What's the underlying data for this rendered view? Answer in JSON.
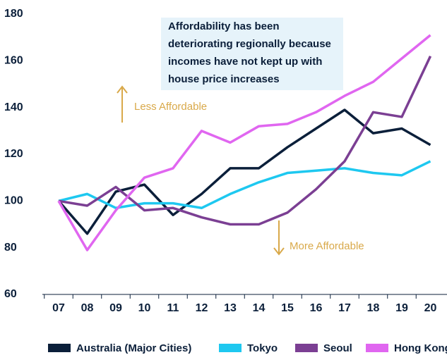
{
  "chart_data": {
    "type": "line",
    "categories": [
      "07",
      "08",
      "09",
      "10",
      "11",
      "12",
      "13",
      "14",
      "15",
      "16",
      "17",
      "18",
      "19",
      "20"
    ],
    "series": [
      {
        "name": "Australia (Major Cities)",
        "color": "#0b1f3a",
        "values": [
          100,
          86,
          104,
          107,
          94,
          103,
          114,
          114,
          123,
          131,
          139,
          129,
          131,
          124
        ]
      },
      {
        "name": "Tokyo",
        "color": "#1ec8f0",
        "values": [
          100,
          103,
          97,
          99,
          99,
          97,
          103,
          108,
          112,
          113,
          114,
          112,
          111,
          117
        ]
      },
      {
        "name": "Seoul",
        "color": "#7b3f93",
        "values": [
          100,
          98,
          106,
          96,
          97,
          93,
          90,
          90,
          95,
          105,
          117,
          138,
          136,
          162
        ]
      },
      {
        "name": "Hong Kong",
        "color": "#e066f0",
        "values": [
          100,
          79,
          96,
          110,
          114,
          130,
          125,
          132,
          133,
          138,
          145,
          151,
          161,
          171
        ]
      }
    ],
    "ylim": [
      60,
      180
    ],
    "yticks": [
      60,
      80,
      100,
      120,
      140,
      160,
      180
    ],
    "annotation": [
      "Affordability has been",
      "deteriorating regionally because",
      "incomes have not kept up with",
      "house price increases"
    ],
    "arrow_labels": [
      "Less Affordable",
      "More Affordable"
    ]
  }
}
